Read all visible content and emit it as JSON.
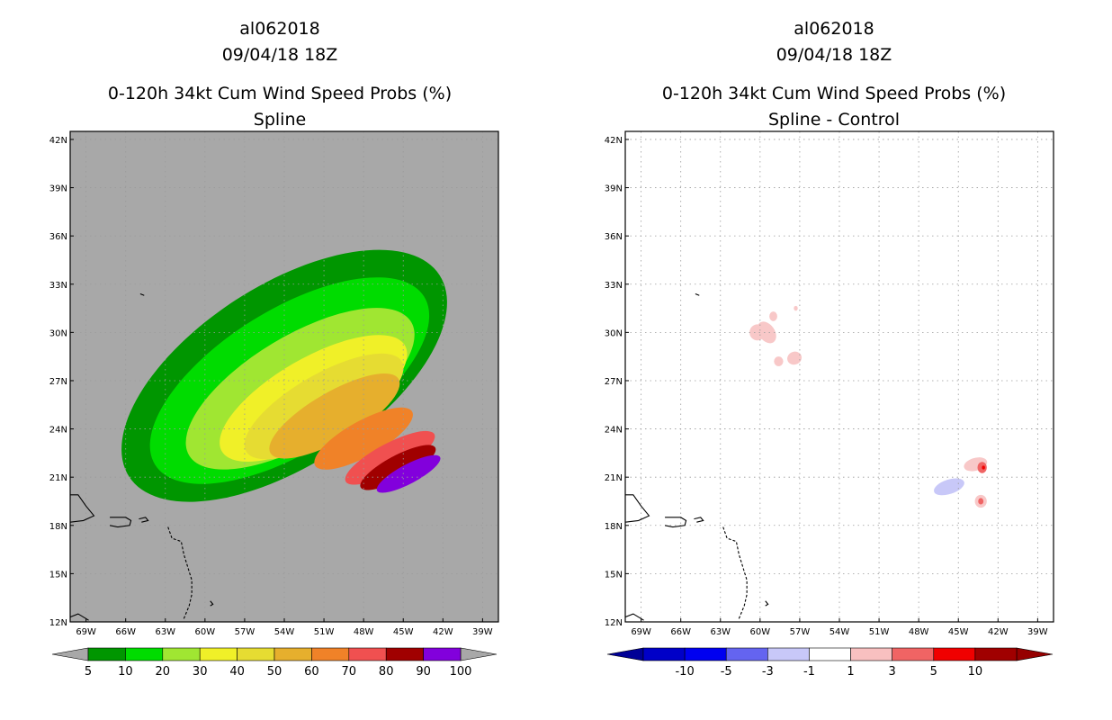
{
  "chart_data": [
    {
      "type": "heatmap",
      "panel": "left",
      "title_lines": [
        "al062018",
        "09/04/18 18Z",
        "0-120h 34kt Cum Wind Speed Probs (%)",
        "Spline"
      ],
      "x_ticks": [
        "69W",
        "66W",
        "63W",
        "60W",
        "57W",
        "54W",
        "51W",
        "48W",
        "45W",
        "42W",
        "39W"
      ],
      "y_ticks": [
        "42N",
        "39N",
        "36N",
        "33N",
        "30N",
        "27N",
        "24N",
        "21N",
        "18N",
        "15N",
        "12N"
      ],
      "xlim": [
        -70.2,
        -37.8
      ],
      "ylim": [
        12,
        42.5
      ],
      "background_color": "#a8a8a8",
      "gridlines": true,
      "colorbar": {
        "levels": [
          "5",
          "10",
          "20",
          "30",
          "40",
          "50",
          "60",
          "70",
          "80",
          "90",
          "100"
        ],
        "colors": [
          "#009600",
          "#00dc00",
          "#a0e632",
          "#f0f028",
          "#e6dc32",
          "#e6af2d",
          "#f08228",
          "#f05050",
          "#a00000",
          "#8200dc"
        ],
        "end_color": "#a8a8a8"
      },
      "contours": [
        {
          "level": 5,
          "color": "#009600",
          "ellipse": {
            "cx": -54.0,
            "cy": 27.3,
            "rx": 14.0,
            "ry": 5.6,
            "rot": -33
          }
        },
        {
          "level": 10,
          "color": "#00dc00",
          "ellipse": {
            "cx": -53.6,
            "cy": 27.0,
            "rx": 12.0,
            "ry": 4.4,
            "rot": -32
          }
        },
        {
          "level": 20,
          "color": "#a0e632",
          "ellipse": {
            "cx": -52.8,
            "cy": 26.5,
            "rx": 9.8,
            "ry": 3.3,
            "rot": -31
          }
        },
        {
          "level": 30,
          "color": "#f0f028",
          "ellipse": {
            "cx": -51.8,
            "cy": 25.9,
            "rx": 8.0,
            "ry": 2.5,
            "rot": -30
          }
        },
        {
          "level": 40,
          "color": "#e6dc32",
          "ellipse": {
            "cx": -51.0,
            "cy": 25.4,
            "rx": 6.8,
            "ry": 2.0,
            "rot": -30
          }
        },
        {
          "level": 50,
          "color": "#e6af2d",
          "ellipse": {
            "cx": -50.2,
            "cy": 24.8,
            "rx": 5.6,
            "ry": 1.5,
            "rot": -30
          }
        },
        {
          "level": 60,
          "color": "#f08228",
          "ellipse": {
            "cx": -48.0,
            "cy": 23.4,
            "rx": 4.2,
            "ry": 1.1,
            "rot": -29
          }
        },
        {
          "level": 70,
          "color": "#f05050",
          "ellipse": {
            "cx": -46.0,
            "cy": 22.2,
            "rx": 3.8,
            "ry": 0.9,
            "rot": -28
          }
        },
        {
          "level": 80,
          "color": "#a00000",
          "ellipse": {
            "cx": -45.4,
            "cy": 21.6,
            "rx": 3.2,
            "ry": 0.75,
            "rot": -28
          }
        },
        {
          "level": 90,
          "color": "#8200dc",
          "ellipse": {
            "cx": -44.6,
            "cy": 21.2,
            "rx": 2.7,
            "ry": 0.6,
            "rot": -28
          }
        }
      ]
    },
    {
      "type": "heatmap",
      "panel": "right",
      "title_lines": [
        "al062018",
        "09/04/18 18Z",
        "0-120h 34kt Cum Wind Speed Probs (%)",
        "Spline - Control"
      ],
      "x_ticks": [
        "69W",
        "66W",
        "63W",
        "60W",
        "57W",
        "54W",
        "51W",
        "48W",
        "45W",
        "42W",
        "39W"
      ],
      "y_ticks": [
        "42N",
        "39N",
        "36N",
        "33N",
        "30N",
        "27N",
        "24N",
        "21N",
        "18N",
        "15N",
        "12N"
      ],
      "xlim": [
        -70.2,
        -37.8
      ],
      "ylim": [
        12,
        42.5
      ],
      "background_color": "#ffffff",
      "gridlines": true,
      "colorbar": {
        "levels": [
          "-10",
          "-5",
          "-3",
          "-1",
          "1",
          "3",
          "5",
          "10"
        ],
        "colors": [
          "#0000c8",
          "#0000f0",
          "#6464f0",
          "#c8c8f8",
          "#ffffff",
          "#f8c0c0",
          "#f06464",
          "#f00000",
          "#a00000"
        ],
        "low_end_color": "#000096",
        "high_end_color": "#960000"
      },
      "contours": [
        {
          "level": 1,
          "color": "#f8c8c8",
          "ellipse": {
            "cx": -60.2,
            "cy": 30.0,
            "rx": 0.6,
            "ry": 0.5,
            "rot": 0
          }
        },
        {
          "level": 1,
          "color": "#f8c8c8",
          "ellipse": {
            "cx": -59.5,
            "cy": 30.0,
            "rx": 0.9,
            "ry": 0.5,
            "rot": 55
          }
        },
        {
          "level": 1,
          "color": "#f8c8c8",
          "ellipse": {
            "cx": -59.0,
            "cy": 31.0,
            "rx": 0.3,
            "ry": 0.3,
            "rot": 0
          }
        },
        {
          "level": 1,
          "color": "#f8c8c8",
          "ellipse": {
            "cx": -58.6,
            "cy": 28.2,
            "rx": 0.35,
            "ry": 0.3,
            "rot": 0
          }
        },
        {
          "level": 1,
          "color": "#f8c8c8",
          "ellipse": {
            "cx": -57.4,
            "cy": 28.4,
            "rx": 0.55,
            "ry": 0.4,
            "rot": -20
          }
        },
        {
          "level": 1,
          "color": "#f8c8c8",
          "ellipse": {
            "cx": -57.3,
            "cy": 31.5,
            "rx": 0.15,
            "ry": 0.15,
            "rot": 0
          }
        },
        {
          "level": -1,
          "color": "#c8c8f8",
          "ellipse": {
            "cx": -45.7,
            "cy": 20.4,
            "rx": 1.2,
            "ry": 0.45,
            "rot": -18
          }
        },
        {
          "level": 1,
          "color": "#f8c8c8",
          "ellipse": {
            "cx": -43.7,
            "cy": 21.8,
            "rx": 0.9,
            "ry": 0.4,
            "rot": -15
          }
        },
        {
          "level": 3,
          "color": "#f06464",
          "ellipse": {
            "cx": -43.2,
            "cy": 21.6,
            "rx": 0.35,
            "ry": 0.35,
            "rot": 0
          }
        },
        {
          "level": 5,
          "color": "#f00000",
          "ellipse": {
            "cx": -43.1,
            "cy": 21.6,
            "rx": 0.12,
            "ry": 0.12,
            "rot": 0
          }
        },
        {
          "level": 1,
          "color": "#f8c8c8",
          "ellipse": {
            "cx": -43.3,
            "cy": 19.5,
            "rx": 0.45,
            "ry": 0.4,
            "rot": 0
          }
        },
        {
          "level": 3,
          "color": "#f06464",
          "ellipse": {
            "cx": -43.3,
            "cy": 19.5,
            "rx": 0.2,
            "ry": 0.2,
            "rot": 0
          }
        }
      ]
    }
  ]
}
